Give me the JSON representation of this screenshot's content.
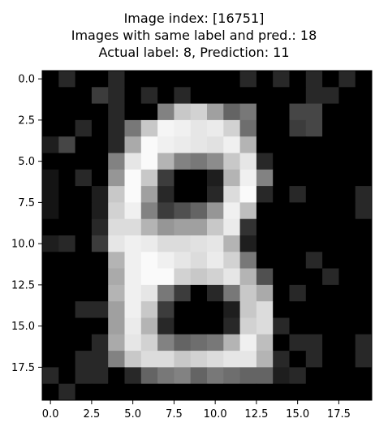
{
  "chart_data": {
    "type": "heatmap",
    "title_lines": [
      "Image index: [16751]",
      "Images with same label and pred.: 18",
      "Actual label: 8, Prediction: 11"
    ],
    "colormap": "gray",
    "value_range": [
      0,
      255
    ],
    "grid": false,
    "x_ticks": [
      0.0,
      2.5,
      5.0,
      7.5,
      10.0,
      12.5,
      15.0,
      17.5
    ],
    "x_tick_labels": [
      "0.0",
      "2.5",
      "5.0",
      "7.5",
      "10.0",
      "12.5",
      "15.0",
      "17.5"
    ],
    "y_ticks": [
      0.0,
      2.5,
      5.0,
      7.5,
      10.0,
      12.5,
      15.0,
      17.5
    ],
    "y_tick_labels": [
      "0.0",
      "2.5",
      "5.0",
      "7.5",
      "10.0",
      "12.5",
      "15.0",
      "17.5"
    ],
    "xlim": [
      -0.5,
      19.5
    ],
    "ylim": [
      19.5,
      -0.5
    ],
    "pixels": [
      [
        0,
        40,
        0,
        0,
        40,
        0,
        0,
        0,
        0,
        0,
        0,
        0,
        40,
        0,
        40,
        0,
        40,
        0,
        40,
        0
      ],
      [
        0,
        0,
        0,
        60,
        40,
        0,
        40,
        0,
        40,
        0,
        0,
        0,
        0,
        0,
        0,
        0,
        40,
        40,
        0,
        0
      ],
      [
        0,
        0,
        0,
        0,
        40,
        0,
        0,
        130,
        200,
        210,
        160,
        100,
        120,
        0,
        0,
        70,
        70,
        0,
        0,
        0
      ],
      [
        0,
        0,
        40,
        0,
        40,
        120,
        200,
        245,
        240,
        230,
        235,
        210,
        110,
        0,
        0,
        60,
        70,
        0,
        0,
        0
      ],
      [
        30,
        70,
        0,
        0,
        40,
        170,
        250,
        240,
        235,
        230,
        225,
        240,
        180,
        0,
        0,
        0,
        0,
        0,
        0,
        0
      ],
      [
        0,
        0,
        0,
        0,
        130,
        230,
        250,
        180,
        130,
        120,
        140,
        200,
        230,
        40,
        0,
        0,
        0,
        0,
        0,
        0
      ],
      [
        20,
        0,
        40,
        0,
        150,
        250,
        200,
        60,
        0,
        0,
        30,
        180,
        240,
        130,
        0,
        0,
        0,
        0,
        0,
        0
      ],
      [
        20,
        0,
        0,
        30,
        200,
        250,
        160,
        40,
        0,
        0,
        40,
        220,
        250,
        40,
        0,
        40,
        0,
        0,
        0,
        40
      ],
      [
        20,
        0,
        0,
        30,
        210,
        240,
        130,
        60,
        80,
        100,
        150,
        240,
        190,
        0,
        0,
        0,
        0,
        0,
        0,
        40
      ],
      [
        0,
        0,
        0,
        40,
        220,
        220,
        180,
        150,
        160,
        160,
        200,
        235,
        50,
        0,
        0,
        0,
        0,
        0,
        0,
        0
      ],
      [
        30,
        40,
        0,
        60,
        230,
        240,
        235,
        220,
        220,
        225,
        230,
        180,
        30,
        0,
        0,
        0,
        0,
        0,
        0,
        0
      ],
      [
        0,
        0,
        0,
        0,
        180,
        240,
        250,
        240,
        230,
        220,
        235,
        210,
        120,
        0,
        0,
        0,
        40,
        0,
        0,
        0
      ],
      [
        0,
        0,
        0,
        0,
        170,
        240,
        250,
        250,
        210,
        200,
        210,
        230,
        180,
        80,
        0,
        0,
        0,
        40,
        0,
        0
      ],
      [
        0,
        0,
        0,
        0,
        180,
        240,
        230,
        120,
        60,
        0,
        40,
        120,
        200,
        170,
        0,
        40,
        0,
        0,
        0,
        0
      ],
      [
        0,
        0,
        40,
        40,
        160,
        240,
        200,
        60,
        0,
        0,
        0,
        30,
        200,
        220,
        0,
        0,
        0,
        0,
        0,
        0
      ],
      [
        0,
        0,
        0,
        0,
        160,
        235,
        180,
        40,
        0,
        0,
        0,
        40,
        210,
        220,
        40,
        0,
        0,
        0,
        0,
        0
      ],
      [
        0,
        0,
        0,
        40,
        170,
        230,
        210,
        130,
        100,
        110,
        120,
        180,
        240,
        190,
        0,
        40,
        40,
        0,
        0,
        40
      ],
      [
        0,
        0,
        40,
        40,
        130,
        200,
        220,
        220,
        200,
        210,
        220,
        230,
        230,
        180,
        40,
        0,
        40,
        0,
        0,
        40
      ],
      [
        40,
        0,
        40,
        40,
        0,
        40,
        100,
        120,
        130,
        100,
        120,
        110,
        100,
        100,
        30,
        40,
        0,
        0,
        0,
        0
      ],
      [
        0,
        40,
        0,
        0,
        0,
        0,
        0,
        0,
        0,
        0,
        0,
        0,
        0,
        0,
        0,
        0,
        0,
        0,
        0,
        0
      ]
    ]
  }
}
